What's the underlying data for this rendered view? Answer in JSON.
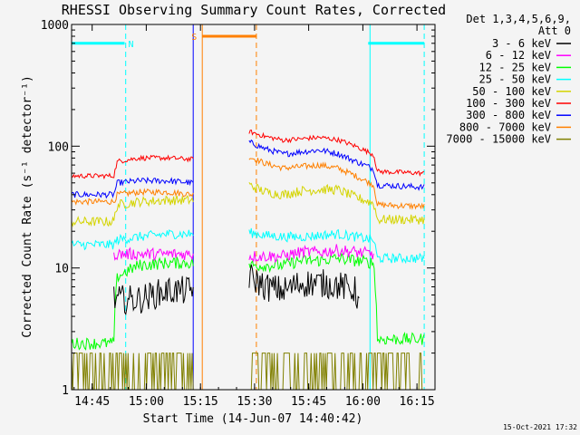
{
  "chart_data": {
    "type": "line",
    "title": "RHESSI Observing Summary Count Rates, Corrected",
    "xlabel": "Start Time (14-Jun-07 14:40:42)",
    "ylabel": "Corrected Count Rate (s⁻¹ detector⁻¹)",
    "y_scale": "log",
    "ylim": [
      1,
      1000
    ],
    "x_unit": "minutes after 14:40",
    "xlim": [
      -0.7,
      100
    ],
    "x_ticks": [
      {
        "t": 5,
        "label": "14:45"
      },
      {
        "t": 20,
        "label": "15:00"
      },
      {
        "t": 35,
        "label": "15:15"
      },
      {
        "t": 50,
        "label": "15:30"
      },
      {
        "t": 65,
        "label": "15:45"
      },
      {
        "t": 80,
        "label": "16:00"
      },
      {
        "t": 95,
        "label": "16:15"
      }
    ],
    "y_ticks": [
      {
        "v": 1,
        "label": "1"
      },
      {
        "v": 10,
        "label": "10"
      },
      {
        "v": 100,
        "label": "100"
      },
      {
        "v": 1000,
        "label": "1000"
      }
    ],
    "legend": {
      "position": "right",
      "header": [
        "Det 1,3,4,5,6,9,",
        "Att 0"
      ]
    },
    "series": [
      {
        "name": "3 - 6 keV",
        "color": "#000000",
        "segments": [
          {
            "x": [
              11,
              18,
              26,
              33
            ],
            "y": [
              null,
              5.5,
              6.5,
              6.5
            ],
            "noise": 0.12
          },
          {
            "x": [
              48.5,
              53,
              58,
              63,
              68,
              73,
              78,
              79
            ],
            "y": [
              8.5,
              7,
              6.5,
              7.5,
              7.5,
              7.2,
              6.5,
              5
            ],
            "noise": 0.12
          }
        ]
      },
      {
        "name": "6 - 12 keV",
        "color": "#ff00ff",
        "segments": [
          {
            "x": [
              11,
              18,
              26,
              33
            ],
            "y": [
              null,
              13,
              13,
              13
            ],
            "noise": 0.05
          },
          {
            "x": [
              48.5,
              53,
              58,
              63,
              68,
              73,
              78,
              83
            ],
            "y": [
              12.5,
              12.5,
              12.5,
              13.5,
              13.5,
              14,
              13.5,
              13
            ],
            "noise": 0.05
          }
        ]
      },
      {
        "name": "12 - 25 keV",
        "color": "#00ff00",
        "segments": [
          {
            "x": [
              -0.7,
              11,
              12,
              18,
              26,
              33
            ],
            "y": [
              2.4,
              2.4,
              8.5,
              10.5,
              11,
              11
            ],
            "noise": 0.05
          },
          {
            "x": [
              48.5,
              53,
              58,
              63,
              68,
              73,
              78,
              83,
              84,
              97
            ],
            "y": [
              10.5,
              10.5,
              10.5,
              11.5,
              11.5,
              12,
              11.5,
              11,
              2.6,
              2.6
            ],
            "noise": 0.05
          }
        ]
      },
      {
        "name": "25 - 50 keV",
        "color": "#00ffff",
        "segments": [
          {
            "x": [
              -0.7,
              11,
              12,
              18,
              26,
              33
            ],
            "y": [
              15.5,
              15.5,
              17,
              18,
              19,
              19
            ],
            "noise": 0.04
          },
          {
            "x": [
              48.5,
              53,
              58,
              63,
              68,
              73,
              78,
              83,
              84,
              97
            ],
            "y": [
              19.5,
              18.5,
              18,
              18,
              18.5,
              19,
              18,
              17,
              12,
              12
            ],
            "noise": 0.04
          }
        ]
      },
      {
        "name": "50 - 100 keV",
        "color": "#d4d400",
        "segments": [
          {
            "x": [
              -0.7,
              11,
              12,
              18,
              26,
              33
            ],
            "y": [
              24,
              24,
              33,
              35,
              36,
              36
            ],
            "noise": 0.04
          },
          {
            "x": [
              48.5,
              53,
              58,
              63,
              68,
              73,
              78,
              83,
              84,
              97
            ],
            "y": [
              48,
              42,
              40,
              43,
              44,
              44,
              38,
              34,
              25,
              25
            ],
            "noise": 0.04
          }
        ]
      },
      {
        "name": "100 - 300 keV",
        "color": "#ff0000",
        "segments": [
          {
            "x": [
              -0.7,
              11,
              12,
              18,
              26,
              33
            ],
            "y": [
              57,
              57,
              75,
              80,
              80,
              78
            ],
            "noise": 0.02
          },
          {
            "x": [
              48.5,
              53,
              58,
              63,
              68,
              73,
              78,
              83,
              84,
              97
            ],
            "y": [
              132,
              120,
              112,
              115,
              118,
              113,
              100,
              85,
              62,
              60
            ],
            "noise": 0.02
          }
        ]
      },
      {
        "name": "300 - 800 keV",
        "color": "#0000ff",
        "segments": [
          {
            "x": [
              -0.7,
              11,
              12,
              18,
              26,
              33
            ],
            "y": [
              40,
              40,
              50,
              52,
              52,
              50
            ],
            "noise": 0.025
          },
          {
            "x": [
              48.5,
              53,
              58,
              63,
              68,
              73,
              78,
              83,
              84,
              97
            ],
            "y": [
              108,
              95,
              86,
              90,
              93,
              87,
              75,
              65,
              48,
              46
            ],
            "noise": 0.025
          }
        ]
      },
      {
        "name": "800 - 7000 keV",
        "color": "#ff8000",
        "segments": [
          {
            "x": [
              -0.7,
              11,
              12,
              18,
              26,
              33
            ],
            "y": [
              35,
              35,
              40,
              42,
              42,
              40
            ],
            "noise": 0.025
          },
          {
            "x": [
              48.5,
              53,
              58,
              63,
              68,
              73,
              78,
              83,
              84,
              97
            ],
            "y": [
              82,
              72,
              66,
              68,
              70,
              66,
              57,
              48,
              33,
              32
            ],
            "noise": 0.025
          }
        ]
      },
      {
        "name": "7000 - 15000 keV",
        "color": "#808000",
        "segments": [
          {
            "x": [
              -0.7,
              33
            ],
            "y": [
              1.45,
              1.45
            ],
            "noise": 0
          },
          {
            "x": [
              48.5,
              97
            ],
            "y": [
              1.45,
              1.45
            ],
            "noise": 0
          }
        ]
      }
    ],
    "flag_bars": [
      {
        "x0": -0.7,
        "x1": 14,
        "v": 700,
        "color": "#00ffff",
        "label": "N"
      },
      {
        "x0": 81.5,
        "x1": 97,
        "v": 700,
        "color": "#00ffff",
        "label": ""
      },
      {
        "x0": 35.5,
        "x1": 50.5,
        "v": 800,
        "color": "#ff8000",
        "label": "S"
      }
    ],
    "vlines": [
      {
        "t": 14.3,
        "color": "#00ffff",
        "dash": true
      },
      {
        "t": 82,
        "color": "#00ffff",
        "dash": false
      },
      {
        "t": 97,
        "color": "#00ffff",
        "dash": true
      },
      {
        "t": 35.5,
        "color": "#ff8000",
        "dash": false
      },
      {
        "t": 50.5,
        "color": "#ff8000",
        "dash": true
      },
      {
        "t": 33,
        "color": "#0000ff",
        "dash": false
      }
    ]
  },
  "footer": {
    "timestamp": "15-Oct-2021 17:32"
  }
}
